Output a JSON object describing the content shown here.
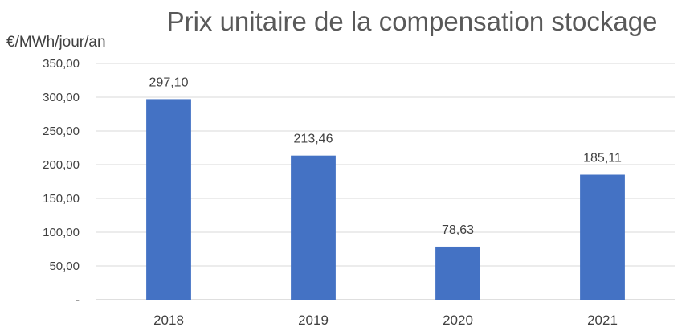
{
  "chart_data": {
    "type": "bar",
    "title": "Prix unitaire de la compensation stockage",
    "ylabel": "€/MWh/jour/an",
    "xlabel": "",
    "categories": [
      "2018",
      "2019",
      "2020",
      "2021"
    ],
    "values": [
      297.1,
      213.46,
      78.63,
      185.11
    ],
    "value_labels": [
      "297,10",
      "213,46",
      "78,63",
      "185,11"
    ],
    "ylim": [
      0,
      350
    ],
    "yticks": [
      0,
      50,
      100,
      150,
      200,
      250,
      300,
      350
    ],
    "ytick_labels": [
      "-",
      "50,00",
      "100,00",
      "150,00",
      "200,00",
      "250,00",
      "300,00",
      "350,00"
    ],
    "grid": true,
    "bar_color": "#4472C4"
  }
}
